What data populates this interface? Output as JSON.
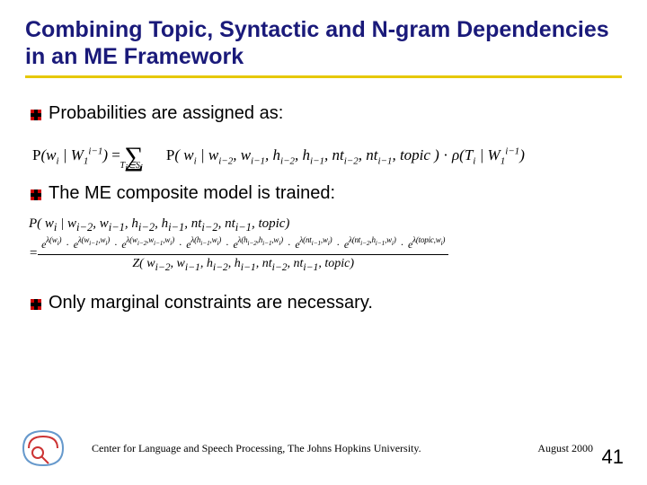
{
  "title": "Combining Topic, Syntactic and N-gram Dependencies in an ME Framework",
  "bullet_marker_color": "#cc0000",
  "bullets": {
    "b1": "Probabilities are assigned as:",
    "b2": "The ME composite model is trained:",
    "b3": "Only marginal constraints are necessary."
  },
  "eq1": {
    "lhs_P": "P",
    "lhs_open": "(",
    "w": "w",
    "i": "i",
    "bar": " | ",
    "W": "W",
    "one": "1",
    "im1": "i−1",
    "close": ")",
    "eq": " = ",
    "sigma": "∑",
    "sigma_sub": "T<sub>i</sub>∈S<sub>i</sub>",
    "rhs_P": "P",
    "args": "( w<sub>i</sub> | w<sub>i−2</sub>, w<sub>i−1</sub>, h<sub>i−2</sub>, h<sub>i−1</sub>, nt<sub>i−2</sub>, nt<sub>i−1</sub>, topic )",
    "cdot": " · ",
    "rho": "ρ",
    "rho_args": "(T<sub>i</sub> | W<sub>1</sub><sup>i−1</sup>)"
  },
  "eq2": {
    "top": "P( w<sub>i</sub> | w<sub>i−2</sub>, w<sub>i−1</sub>, h<sub>i−2</sub>, h<sub>i−1</sub>, nt<sub>i−2</sub>, nt<sub>i−1</sub>, topic)",
    "num_terms": [
      "e<span class=\"exp\">λ(w<sub>i</sub>)</span>",
      "e<span class=\"exp\">λ(w<sub>i−1</sub>,w<sub>i</sub>)</span>",
      "e<span class=\"exp\">λ(w<sub>i−2</sub>,w<sub>i−1</sub>,w<sub>i</sub>)</span>",
      "e<span class=\"exp\">λ(h<sub>i−1</sub>,w<sub>i</sub>)</span>",
      "e<span class=\"exp\">λ(h<sub>i−2</sub>,h<sub>i−1</sub>,w<sub>i</sub>)</span>",
      "e<span class=\"exp\">λ(nt<sub>i−1</sub>,w<sub>i</sub>)</span>",
      "e<span class=\"exp\">λ(nt<sub>i−2</sub>,h<sub>i−1</sub>,w<sub>i</sub>)</span>",
      "e<span class=\"exp\">λ(topic,w<sub>i</sub>)</span>"
    ],
    "den": "Z( w<sub>i−2</sub>, w<sub>i−1</sub>, h<sub>i−2</sub>, h<sub>i−1</sub>, nt<sub>i−2</sub>, nt<sub>i−1</sub>, topic)"
  },
  "footer": {
    "affiliation": "Center for Language and Speech Processing, The Johns Hopkins University.",
    "date": "August 2000",
    "page": "41"
  },
  "colors": {
    "title": "#1a1a7a",
    "underline": "#e6c800",
    "text": "#000000",
    "background": "#ffffff"
  }
}
